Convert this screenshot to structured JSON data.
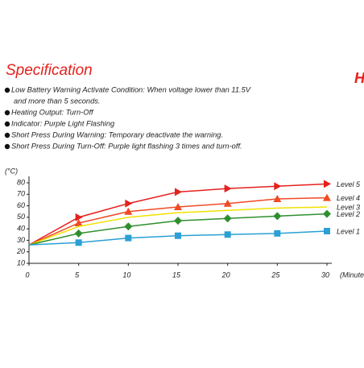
{
  "heading": "Specification",
  "corner_text": "H",
  "spec": [
    "Low Battery Warning Activate Condition: When voltage lower than 11.5V",
    "and more than 5 seconds.",
    "Heating Output: Turn-Off",
    "Indicator: Purple Light Flashing",
    "Short Press During Warning: Temporary deactivate the warning.",
    "Short Press During Turn-Off: Purple light flashing 3 times and turn-off."
  ],
  "chart_data": {
    "type": "line",
    "y_label": "(°C)",
    "x_label": "(Minute",
    "x": [
      0,
      5,
      10,
      15,
      20,
      25,
      30
    ],
    "xlim": [
      0,
      30
    ],
    "xticks": [
      0,
      5,
      10,
      15,
      20,
      25,
      30
    ],
    "ylim": [
      10,
      80
    ],
    "yticks": [
      10,
      20,
      30,
      40,
      50,
      60,
      70,
      80
    ],
    "series": [
      {
        "name": "Level 5",
        "color": "#e5211d",
        "marker": "triangle-right",
        "values": [
          26,
          50,
          62,
          72,
          75,
          77,
          79
        ]
      },
      {
        "name": "Level 4",
        "color": "#f04a24",
        "marker": "triangle-up",
        "values": [
          26,
          45,
          55,
          59,
          62,
          66,
          67
        ]
      },
      {
        "name": "Level 3",
        "color": "#f2e200",
        "marker": "none",
        "values": [
          26,
          42,
          50,
          54,
          56,
          58,
          59
        ]
      },
      {
        "name": "Level 2",
        "color": "#2f8f2f",
        "marker": "diamond",
        "values": [
          26,
          36,
          42,
          47,
          49,
          51,
          53
        ]
      },
      {
        "name": "Level 1",
        "color": "#2aa0d4",
        "marker": "square",
        "values": [
          26,
          28,
          32,
          34,
          35,
          36,
          38
        ]
      }
    ]
  }
}
